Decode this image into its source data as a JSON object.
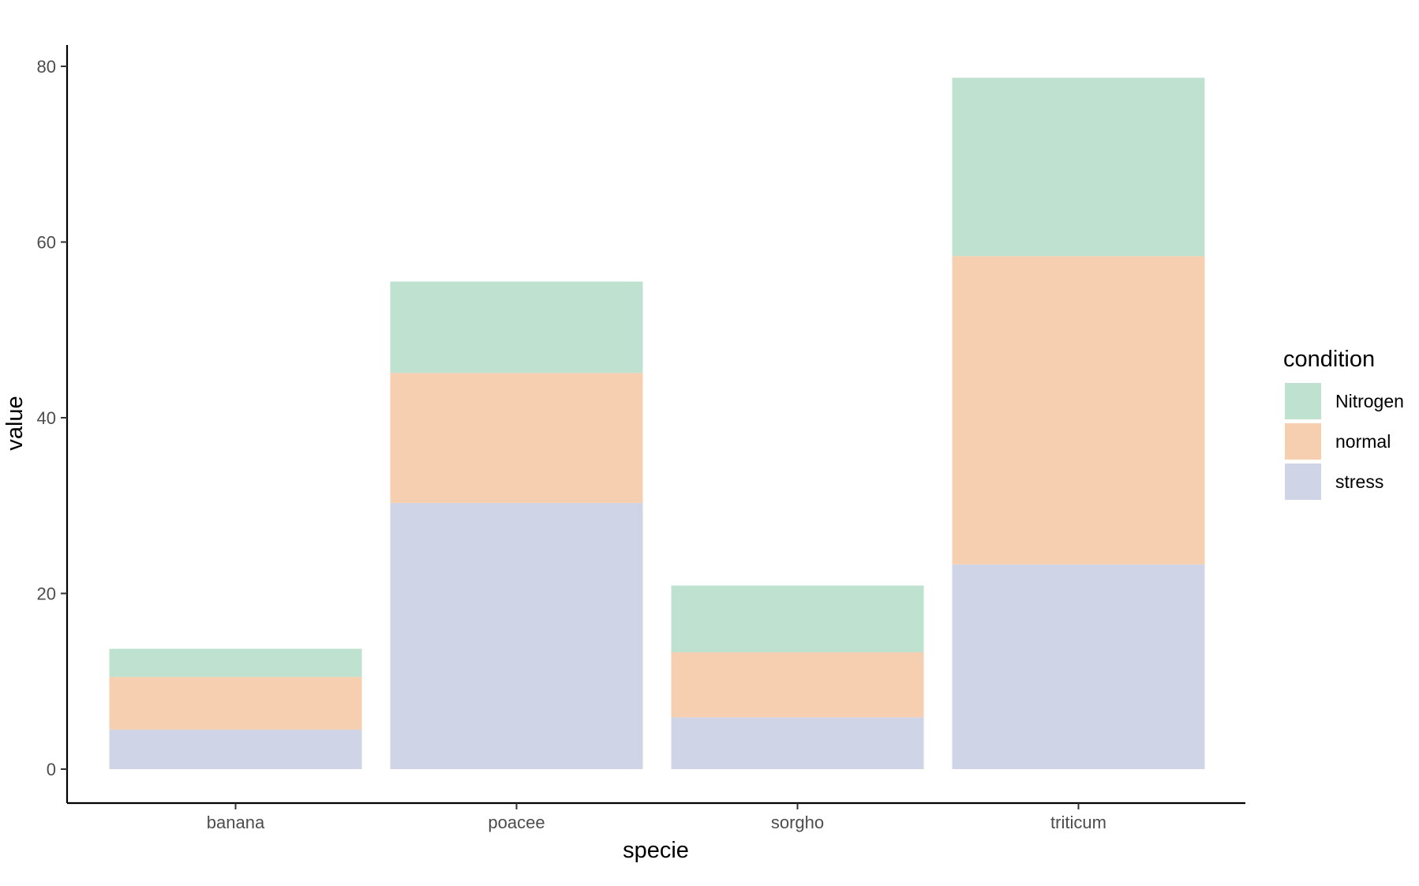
{
  "chart_data": {
    "type": "bar",
    "stacked": true,
    "categories": [
      "banana",
      "poacee",
      "sorgho",
      "triticum"
    ],
    "series": [
      {
        "name": "stress",
        "color": "#CFD5E7",
        "values": [
          4.5,
          30.3,
          5.9,
          23.3
        ]
      },
      {
        "name": "normal",
        "color": "#F6CFB0",
        "values": [
          6.0,
          14.8,
          7.4,
          35.1
        ]
      },
      {
        "name": "Nitrogen",
        "color": "#BFE2D0",
        "values": [
          3.2,
          10.4,
          7.6,
          20.3
        ]
      }
    ],
    "title": "",
    "xlabel": "specie",
    "ylabel": "value",
    "ylim": [
      -4,
      82.5
    ],
    "yticks": [
      0,
      20,
      40,
      60,
      80
    ],
    "grid": false,
    "legend": {
      "title": "condition",
      "position": "right",
      "entries": [
        {
          "name": "Nitrogen",
          "color": "#BFE2D0"
        },
        {
          "name": "normal",
          "color": "#F6CFB0"
        },
        {
          "name": "stress",
          "color": "#CFD5E7"
        }
      ]
    }
  }
}
